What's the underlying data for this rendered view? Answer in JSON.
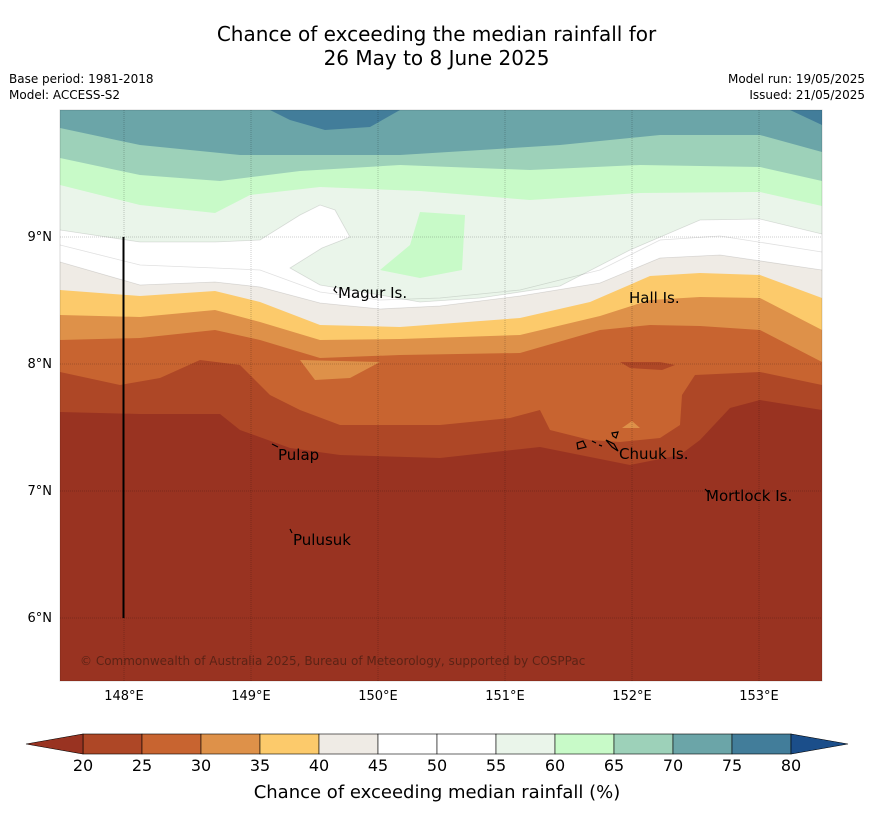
{
  "title": {
    "line1": "Chance of exceeding the median rainfall for",
    "line2": "26 May to 8 June 2025"
  },
  "meta": {
    "base_period": "Base period: 1981-2018",
    "model": "Model: ACCESS-S2",
    "model_run": "Model run: 19/05/2025",
    "issued": "Issued: 21/05/2025"
  },
  "map": {
    "lon_range": [
      147.5,
      153.5
    ],
    "lat_range": [
      5.5,
      10.0
    ],
    "x_ticks": [
      "148°E",
      "149°E",
      "150°E",
      "151°E",
      "152°E",
      "153°E"
    ],
    "y_ticks": [
      "6°N",
      "7°N",
      "8°N",
      "9°N"
    ],
    "grid": true,
    "places": [
      "Magur Is.",
      "Hall Is.",
      "Pulap",
      "Chuuk Is.",
      "Mortlock Is.",
      "Pulusuk"
    ],
    "copyright": "© Commonwealth of Australia 2025, Bureau of Meteorology, supported by COSPPac"
  },
  "colorbar": {
    "label": "Chance of exceeding median rainfall (%)",
    "ticks": [
      "20",
      "25",
      "30",
      "35",
      "40",
      "45",
      "50",
      "55",
      "60",
      "65",
      "70",
      "75",
      "80"
    ],
    "colors": {
      "below_20": "#993321",
      "20_25": "#ae4726",
      "25_30": "#c86430",
      "30_35": "#de9149",
      "35_40": "#fcca6b",
      "40_45": "#efebe5",
      "45_50": "#ffffff",
      "50_55": "#ffffff",
      "55_60": "#eaf5ea",
      "60_65": "#c8fac8",
      "65_70": "#9dd1b9",
      "70_75": "#6ba5a8",
      "75_80": "#427d9a",
      "above_80": "#1b4e8a"
    }
  }
}
